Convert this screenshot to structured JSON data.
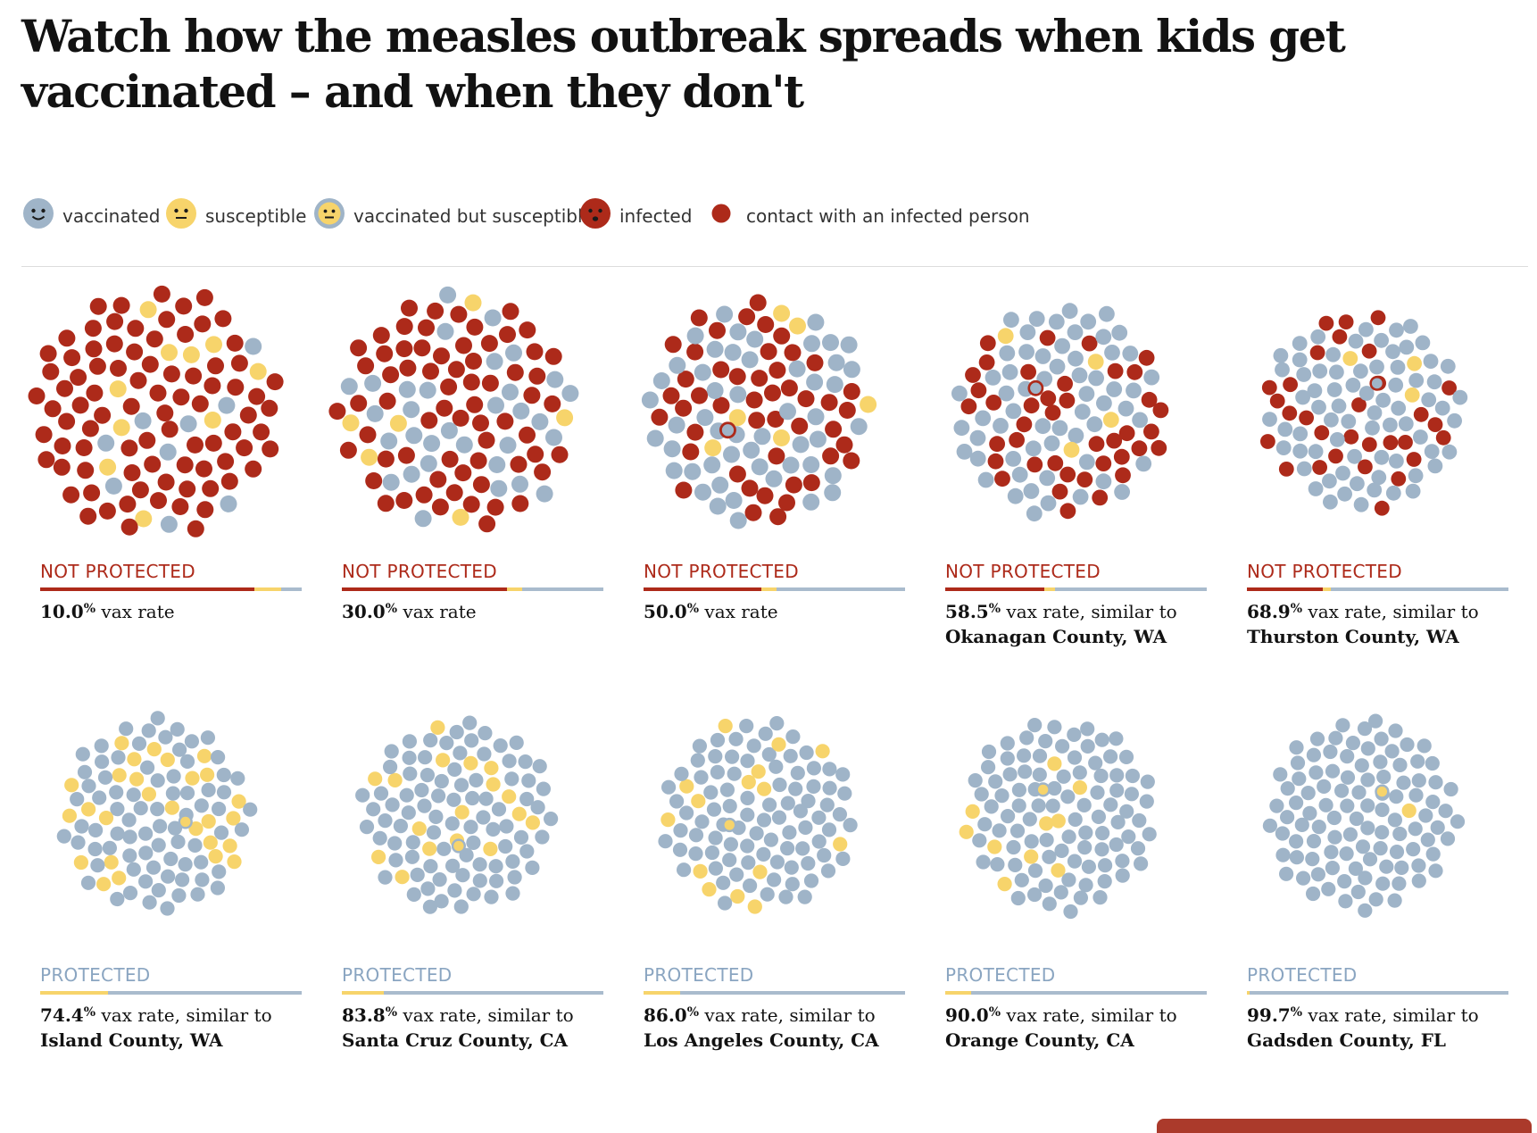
{
  "title": "Watch how the measles outbreak spreads when kids get vaccinated – and when they don't",
  "legend": [
    {
      "label": "vaccinated",
      "icon": "vaccinated-face-icon",
      "kind": "vaccinated"
    },
    {
      "label": "susceptible",
      "icon": "susceptible-face-icon",
      "kind": "susceptible"
    },
    {
      "label": "vaccinated but susceptible",
      "icon": "vaccinated-susceptible-face-icon",
      "kind": "vax-susceptible"
    },
    {
      "label": "infected",
      "icon": "infected-face-icon",
      "kind": "infected"
    },
    {
      "label": "contact with an infected person",
      "icon": "contact-dot-icon",
      "kind": "contact"
    }
  ],
  "colors": {
    "vaccinated": "#9fb4c8",
    "susceptible": "#f7d46b",
    "infected": "#ad2a1a",
    "protected_text": "#8aa5c1",
    "not_protected_text": "#ad2a1a",
    "bar_vaccinated": "#a9bbcd"
  },
  "chart_data": {
    "type": "scatter",
    "description_unit": "each dot is one child",
    "panels": [
      {
        "status": "NOT PROTECTED",
        "protected": false,
        "rate": "10.0",
        "suffix": " vax rate",
        "county": "",
        "vax_rate": 10.0,
        "infected_share": 0.82,
        "susceptible_share": 0.1
      },
      {
        "status": "NOT PROTECTED",
        "protected": false,
        "rate": "30.0",
        "suffix": " vax rate",
        "county": "",
        "vax_rate": 30.0,
        "infected_share": 0.63,
        "susceptible_share": 0.06
      },
      {
        "status": "NOT PROTECTED",
        "protected": false,
        "rate": "50.0",
        "suffix": " vax rate",
        "county": "",
        "vax_rate": 50.0,
        "infected_share": 0.45,
        "susceptible_share": 0.06
      },
      {
        "status": "NOT PROTECTED",
        "protected": false,
        "rate": "58.5",
        "suffix": " vax rate, similar to",
        "county": "Okanagan County, WA",
        "vax_rate": 58.5,
        "infected_share": 0.38,
        "susceptible_share": 0.04
      },
      {
        "status": "NOT PROTECTED",
        "protected": false,
        "rate": "68.9",
        "suffix": " vax rate, similar to",
        "county": "Thurston County, WA",
        "vax_rate": 68.9,
        "infected_share": 0.29,
        "susceptible_share": 0.03
      },
      {
        "status": "PROTECTED",
        "protected": true,
        "rate": "74.4",
        "suffix": " vax rate, similar to",
        "county": "Island County, WA",
        "vax_rate": 74.4,
        "infected_share": 0,
        "susceptible_share": 0.26
      },
      {
        "status": "PROTECTED",
        "protected": true,
        "rate": "83.8",
        "suffix": " vax rate, similar to",
        "county": "Santa Cruz County, CA",
        "vax_rate": 83.8,
        "infected_share": 0,
        "susceptible_share": 0.16
      },
      {
        "status": "PROTECTED",
        "protected": true,
        "rate": "86.0",
        "suffix": " vax rate, similar to",
        "county": "Los Angeles County, CA",
        "vax_rate": 86.0,
        "infected_share": 0,
        "susceptible_share": 0.14
      },
      {
        "status": "PROTECTED",
        "protected": true,
        "rate": "90.0",
        "suffix": " vax rate, similar to",
        "county": "Orange County, CA",
        "vax_rate": 90.0,
        "infected_share": 0,
        "susceptible_share": 0.1
      },
      {
        "status": "PROTECTED",
        "protected": true,
        "rate": "99.7",
        "suffix": " vax rate, similar to",
        "county": "Gadsden County, FL",
        "vax_rate": 99.7,
        "infected_share": 0,
        "susceptible_share": 0.01
      }
    ]
  }
}
